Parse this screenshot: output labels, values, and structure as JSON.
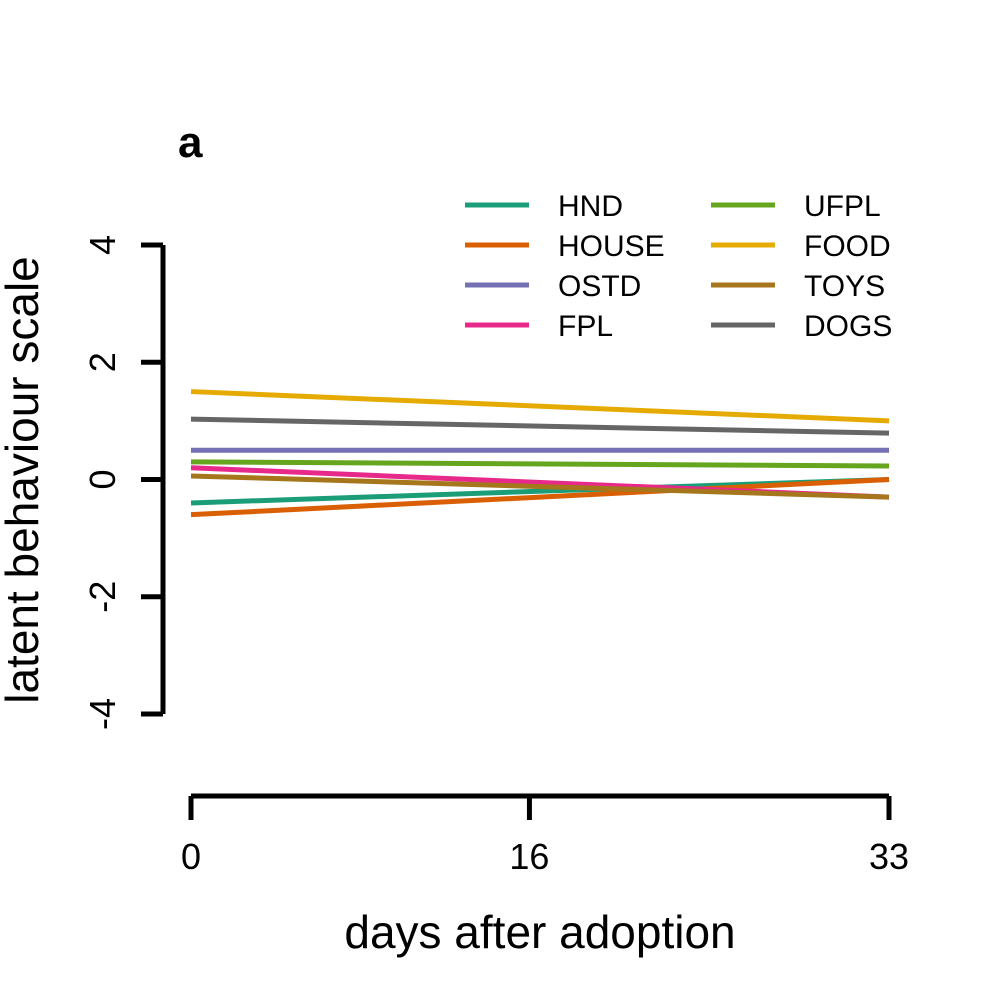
{
  "chart_data": {
    "type": "line",
    "panel_label": "a",
    "xlabel": "days after adoption",
    "ylabel": "latent behaviour scale",
    "xlim": [
      0,
      33
    ],
    "ylim": [
      -4,
      4
    ],
    "x_ticks": [
      0,
      16,
      33
    ],
    "y_ticks": [
      -4,
      -2,
      0,
      2,
      4
    ],
    "x_tick_labels": [
      "0",
      "16",
      "33"
    ],
    "y_tick_labels": [
      "-4",
      "-2",
      "0",
      "2",
      "4"
    ],
    "grid": false,
    "legend_position": "top-right",
    "legend_columns": 2,
    "series": [
      {
        "name": "HND",
        "color": "#1B9E77",
        "x": [
          0,
          33
        ],
        "y": [
          -0.4,
          0.0
        ]
      },
      {
        "name": "HOUSE",
        "color": "#D95F02",
        "x": [
          0,
          33
        ],
        "y": [
          -0.6,
          0.0
        ]
      },
      {
        "name": "OSTD",
        "color": "#7570B3",
        "x": [
          0,
          33
        ],
        "y": [
          0.5,
          0.5
        ]
      },
      {
        "name": "FPL",
        "color": "#E7298A",
        "x": [
          0,
          33
        ],
        "y": [
          0.2,
          -0.3
        ]
      },
      {
        "name": "UFPL",
        "color": "#66A61E",
        "x": [
          0,
          33
        ],
        "y": [
          0.3,
          0.23
        ]
      },
      {
        "name": "FOOD",
        "color": "#E6AB02",
        "x": [
          0,
          33
        ],
        "y": [
          1.5,
          1.0
        ]
      },
      {
        "name": "TOYS",
        "color": "#A6761D",
        "x": [
          0,
          33
        ],
        "y": [
          0.06,
          -0.3
        ]
      },
      {
        "name": "DOGS",
        "color": "#666666",
        "x": [
          0,
          33
        ],
        "y": [
          1.03,
          0.79
        ]
      }
    ]
  }
}
